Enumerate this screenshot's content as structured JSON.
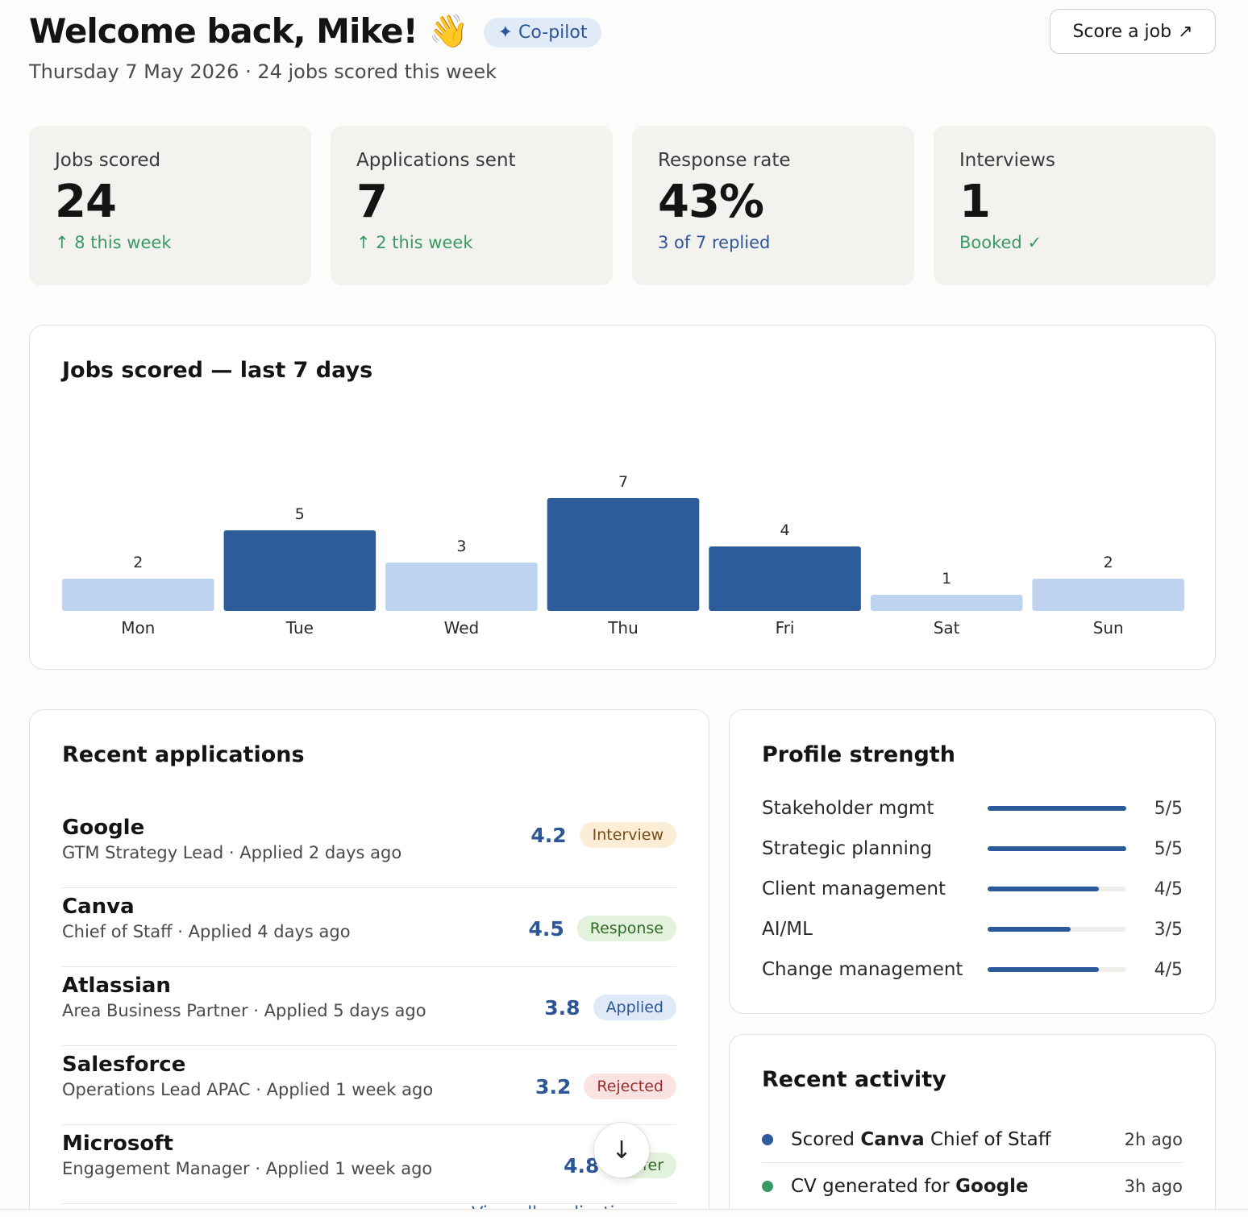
{
  "header": {
    "title": "Welcome back, Mike!",
    "wave": "👋",
    "copilot_badge": "✦ Co-pilot",
    "subtitle": "Thursday 7 May 2026 · 24 jobs scored this week",
    "score_button": "Score a job",
    "score_button_icon": "↗"
  },
  "stats": [
    {
      "label": "Jobs scored",
      "value": "24",
      "sub": "↑ 8 this week",
      "color": "#3a9a63"
    },
    {
      "label": "Applications sent",
      "value": "7",
      "sub": "↑ 2 this week",
      "color": "#3a9a63"
    },
    {
      "label": "Response rate",
      "value": "43%",
      "sub": "3 of 7 replied",
      "color": "#2c5697"
    },
    {
      "label": "Interviews",
      "value": "1",
      "sub": "Booked ✓",
      "color": "#3a9a63"
    }
  ],
  "chart": {
    "title": "Jobs scored — last 7 days"
  },
  "chart_data": {
    "type": "bar",
    "title": "Jobs scored — last 7 days",
    "categories": [
      "Mon",
      "Tue",
      "Wed",
      "Thu",
      "Fri",
      "Sat",
      "Sun"
    ],
    "values": [
      2,
      5,
      3,
      7,
      4,
      1,
      2
    ],
    "highlighted": [
      false,
      true,
      false,
      true,
      true,
      false,
      false
    ],
    "colors": {
      "highlight": "#2d5c9c",
      "normal": "#bed3ef"
    },
    "xlabel": "",
    "ylabel": "",
    "grid": false
  },
  "applications": {
    "title": "Recent applications",
    "items": [
      {
        "company": "Google",
        "meta": "GTM Strategy Lead · Applied 2 days ago",
        "score": "4.2",
        "status": "Interview",
        "badge": "b-interview"
      },
      {
        "company": "Canva",
        "meta": "Chief of Staff · Applied 4 days ago",
        "score": "4.5",
        "status": "Response",
        "badge": "b-response"
      },
      {
        "company": "Atlassian",
        "meta": "Area Business Partner · Applied 5 days ago",
        "score": "3.8",
        "status": "Applied",
        "badge": "b-applied"
      },
      {
        "company": "Salesforce",
        "meta": "Operations Lead APAC · Applied 1 week ago",
        "score": "3.2",
        "status": "Rejected",
        "badge": "b-rejected"
      },
      {
        "company": "Microsoft",
        "meta": "Engagement Manager · Applied 1 week ago",
        "score": "4.8",
        "status": "Offer",
        "badge": "b-offer"
      }
    ],
    "view_all": "View all applications ›"
  },
  "scroll_button_icon": "↓",
  "profile": {
    "title": "Profile strength",
    "skills": [
      {
        "name": "Stakeholder mgmt",
        "score": "5/5",
        "level": 1.0
      },
      {
        "name": "Strategic planning",
        "score": "5/5",
        "level": 1.0
      },
      {
        "name": "Client management",
        "score": "4/5",
        "level": 0.8
      },
      {
        "name": "AI/ML",
        "score": "3/5",
        "level": 0.6
      },
      {
        "name": "Change management",
        "score": "4/5",
        "level": 0.8
      }
    ]
  },
  "activity": {
    "title": "Recent activity",
    "items": [
      {
        "prefix": "Scored ",
        "bold": "Canva",
        "suffix": " Chief of Staff",
        "time": "2h ago",
        "dot": "#2d5c9c"
      },
      {
        "prefix": "CV generated for ",
        "bold": "Google",
        "suffix": "",
        "time": "3h ago",
        "dot": "#3a9a63"
      }
    ]
  }
}
